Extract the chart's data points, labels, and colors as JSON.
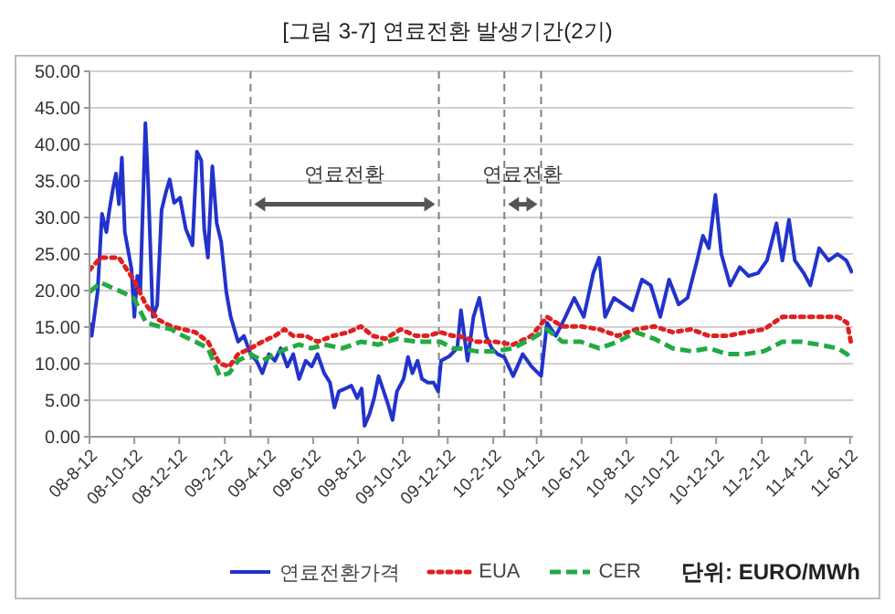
{
  "chart_data": {
    "type": "line",
    "title": "[그림 3-7] 연료전환 발생기간(2기)",
    "annotations": [
      "단위: EURO/MWh"
    ],
    "xlim": [
      "2008-08-12",
      "2011-06-16"
    ],
    "xticks": [
      {
        "value": "2008-08-12",
        "label": "08-8-12"
      },
      {
        "value": "2008-10-12",
        "label": "08-10-12"
      },
      {
        "value": "2008-12-12",
        "label": "08-12-12"
      },
      {
        "value": "2009-02-12",
        "label": "09-2-12"
      },
      {
        "value": "2009-04-12",
        "label": "09-4-12"
      },
      {
        "value": "2009-06-12",
        "label": "09-6-12"
      },
      {
        "value": "2009-08-12",
        "label": "09-8-12"
      },
      {
        "value": "2009-10-12",
        "label": "09-10-12"
      },
      {
        "value": "2009-12-12",
        "label": "09-12-12"
      },
      {
        "value": "2010-02-12",
        "label": "10-2-12"
      },
      {
        "value": "2010-04-12",
        "label": "10-4-12"
      },
      {
        "value": "2010-06-12",
        "label": "10-6-12"
      },
      {
        "value": "2010-08-12",
        "label": "10-8-12"
      },
      {
        "value": "2010-10-12",
        "label": "10-10-12"
      },
      {
        "value": "2010-12-12",
        "label": "10-12-12"
      },
      {
        "value": "2011-02-12",
        "label": "11-2-12"
      },
      {
        "value": "2011-04-12",
        "label": "11-4-12"
      },
      {
        "value": "2011-06-12",
        "label": "11-6-12"
      }
    ],
    "ylim": [
      0,
      50
    ],
    "yticks": [
      {
        "value": 0,
        "label": "0.00"
      },
      {
        "value": 5,
        "label": "5.00"
      },
      {
        "value": 10,
        "label": "10.00"
      },
      {
        "value": 15,
        "label": "15.00"
      },
      {
        "value": 20,
        "label": "20.00"
      },
      {
        "value": 25,
        "label": "25.00"
      },
      {
        "value": 30,
        "label": "30.00"
      },
      {
        "value": 35,
        "label": "35.00"
      },
      {
        "value": 40,
        "label": "40.00"
      },
      {
        "value": 45,
        "label": "45.00"
      },
      {
        "value": 50,
        "label": "50.00"
      }
    ],
    "grid": "y",
    "legend": "bottom",
    "marker": "none",
    "ref_lines": [
      {
        "axis": "x",
        "value": "2009-03-19",
        "color": "#808080",
        "line_style": "dashed",
        "label": "연료전환"
      },
      {
        "axis": "x",
        "value": "2009-11-30",
        "color": "#808080",
        "line_style": "dashed"
      },
      {
        "axis": "x",
        "value": "2010-02-27",
        "color": "#808080",
        "line_style": "dashed",
        "label": "연료전환"
      },
      {
        "axis": "x",
        "value": "2010-04-18",
        "color": "#808080",
        "line_style": "dashed"
      }
    ],
    "series": [
      {
        "name": "연료전환가격",
        "color": "#2233cc",
        "line_style": "solid",
        "x": [
          "2008-08-12",
          "2008-08-15",
          "2008-08-23",
          "2008-08-29",
          "2008-09-04",
          "2008-09-08",
          "2008-09-13",
          "2008-09-17",
          "2008-09-21",
          "2008-09-25",
          "2008-09-29",
          "2008-10-03",
          "2008-10-08",
          "2008-10-12",
          "2008-10-16",
          "2008-10-20",
          "2008-10-27",
          "2008-10-31",
          "2008-11-06",
          "2008-11-12",
          "2008-11-18",
          "2008-11-24",
          "2008-11-29",
          "2008-12-05",
          "2008-12-13",
          "2008-12-21",
          "2008-12-30",
          "2009-01-05",
          "2009-01-11",
          "2009-01-15",
          "2009-01-20",
          "2009-01-26",
          "2009-02-01",
          "2009-02-07",
          "2009-02-14",
          "2009-02-20",
          "2009-03-02",
          "2009-03-10",
          "2009-03-19",
          "2009-03-27",
          "2009-04-04",
          "2009-04-13",
          "2009-04-21",
          "2009-04-29",
          "2009-05-08",
          "2009-05-16",
          "2009-05-24",
          "2009-06-02",
          "2009-06-10",
          "2009-06-18",
          "2009-06-27",
          "2009-07-05",
          "2009-07-11",
          "2009-07-17",
          "2009-07-26",
          "2009-08-03",
          "2009-08-11",
          "2009-08-17",
          "2009-08-21",
          "2009-08-28",
          "2009-09-03",
          "2009-09-09",
          "2009-09-16",
          "2009-09-22",
          "2009-09-28",
          "2009-10-04",
          "2009-10-13",
          "2009-10-19",
          "2009-10-25",
          "2009-11-01",
          "2009-11-07",
          "2009-11-15",
          "2009-11-23",
          "2009-11-29",
          "2009-12-03",
          "2009-12-14",
          "2009-12-25",
          "2009-12-30",
          "2010-01-08",
          "2010-01-16",
          "2010-01-24",
          "2010-02-02",
          "2010-02-10",
          "2010-02-18",
          "2010-02-27",
          "2010-03-11",
          "2010-03-24",
          "2010-04-05",
          "2010-04-18",
          "2010-04-26",
          "2010-05-08",
          "2010-05-21",
          "2010-06-02",
          "2010-06-15",
          "2010-06-28",
          "2010-07-06",
          "2010-07-14",
          "2010-07-26",
          "2010-08-08",
          "2010-08-20",
          "2010-09-02",
          "2010-09-14",
          "2010-09-27",
          "2010-10-09",
          "2010-10-22",
          "2010-11-03",
          "2010-11-16",
          "2010-11-24",
          "2010-12-02",
          "2010-12-11",
          "2010-12-19",
          "2010-12-31",
          "2011-01-13",
          "2011-01-25",
          "2011-02-07",
          "2011-02-19",
          "2011-03-04",
          "2011-03-12",
          "2011-03-21",
          "2011-03-29",
          "2011-04-10",
          "2011-04-19",
          "2011-05-01",
          "2011-05-14",
          "2011-05-26",
          "2011-06-07",
          "2011-06-15"
        ],
        "values": [
          15.6,
          13.8,
          19.8,
          30.5,
          28,
          31,
          34,
          36,
          31.8,
          38.2,
          28,
          25.8,
          23,
          16.4,
          22,
          19.8,
          42.9,
          34,
          16.4,
          18,
          31,
          33.5,
          35.2,
          32,
          32.7,
          28.4,
          26.2,
          39,
          37.8,
          28.4,
          24.5,
          37,
          29.2,
          26.7,
          19.8,
          16.4,
          13,
          13.8,
          11.3,
          10.4,
          8.7,
          11.3,
          10.4,
          12.1,
          9.6,
          11.3,
          7.9,
          10.4,
          9.6,
          11.3,
          8.7,
          7.4,
          4,
          6.2,
          6.6,
          7,
          5.3,
          6.6,
          1.5,
          3.2,
          5.3,
          8.3,
          6.2,
          4.4,
          2.3,
          6.2,
          7.9,
          10.9,
          8.7,
          10.4,
          7.9,
          7.4,
          7.4,
          6.2,
          10.4,
          11,
          12.1,
          17.3,
          10.4,
          16.4,
          19,
          13.8,
          12.1,
          11.3,
          10.9,
          8.3,
          11.3,
          9.6,
          8.3,
          15.6,
          13.8,
          16.4,
          19,
          16.4,
          22.4,
          24.5,
          16.4,
          19,
          18.1,
          17.3,
          21.5,
          20.7,
          16.4,
          21.5,
          18.1,
          19,
          24.1,
          27.5,
          25.8,
          33.1,
          25,
          20.7,
          23.2,
          22,
          22.4,
          24.1,
          29.2,
          24.1,
          29.7,
          24.1,
          22.4,
          20.7,
          25.8,
          24.1,
          25,
          24.1,
          22.4
        ]
      },
      {
        "name": "EUA",
        "color": "#e02020",
        "line_style": "dotted",
        "x": [
          "2008-08-12",
          "2008-08-27",
          "2008-09-21",
          "2008-10-11",
          "2008-10-28",
          "2008-11-14",
          "2008-12-01",
          "2008-12-17",
          "2009-01-03",
          "2009-01-20",
          "2009-02-05",
          "2009-02-18",
          "2009-03-02",
          "2009-03-19",
          "2009-04-04",
          "2009-04-21",
          "2009-05-04",
          "2009-05-16",
          "2009-06-02",
          "2009-06-18",
          "2009-07-09",
          "2009-07-30",
          "2009-08-16",
          "2009-09-01",
          "2009-09-18",
          "2009-10-09",
          "2009-10-30",
          "2009-11-15",
          "2009-12-02",
          "2009-12-19",
          "2009-12-27",
          "2010-01-20",
          "2010-02-14",
          "2010-03-11",
          "2010-04-05",
          "2010-04-26",
          "2010-05-17",
          "2010-06-11",
          "2010-07-06",
          "2010-07-31",
          "2010-08-25",
          "2010-09-19",
          "2010-10-14",
          "2010-11-08",
          "2010-12-02",
          "2010-12-27",
          "2011-01-21",
          "2011-02-15",
          "2011-03-12",
          "2011-04-06",
          "2011-05-01",
          "2011-05-26",
          "2011-06-08",
          "2011-06-13"
        ],
        "values": [
          22.8,
          24.5,
          24.5,
          21.5,
          18,
          16,
          15.1,
          14.7,
          14.3,
          13,
          10,
          9.6,
          11.3,
          12.1,
          13,
          13.8,
          14.7,
          13.8,
          13.8,
          13,
          13.8,
          14.3,
          15.1,
          13.8,
          13.4,
          14.7,
          13.8,
          13.8,
          14.3,
          13.8,
          13.8,
          13,
          13,
          12.6,
          13.8,
          16.4,
          15.1,
          15.1,
          14.7,
          13.8,
          14.7,
          15.1,
          14.3,
          14.7,
          13.8,
          13.8,
          14.3,
          14.7,
          16.4,
          16.4,
          16.4,
          16.4,
          15.6,
          13
        ]
      },
      {
        "name": "CER",
        "color": "#22aa44",
        "line_style": "dashed",
        "x": [
          "2008-08-12",
          "2008-08-27",
          "2008-09-25",
          "2008-10-11",
          "2008-10-28",
          "2008-11-14",
          "2008-12-01",
          "2008-12-17",
          "2009-01-03",
          "2009-01-20",
          "2009-02-05",
          "2009-02-18",
          "2009-03-02",
          "2009-03-19",
          "2009-04-04",
          "2009-04-21",
          "2009-05-08",
          "2009-05-24",
          "2009-06-10",
          "2009-06-27",
          "2009-07-22",
          "2009-08-16",
          "2009-09-09",
          "2009-10-04",
          "2009-10-30",
          "2009-11-15",
          "2009-12-02",
          "2009-12-19",
          "2009-12-27",
          "2010-01-20",
          "2010-02-14",
          "2010-03-11",
          "2010-04-05",
          "2010-04-26",
          "2010-05-17",
          "2010-06-11",
          "2010-07-06",
          "2010-07-31",
          "2010-08-25",
          "2010-09-19",
          "2010-10-14",
          "2010-11-08",
          "2010-12-02",
          "2010-12-27",
          "2011-01-21",
          "2011-02-15",
          "2011-03-12",
          "2011-04-06",
          "2011-05-01",
          "2011-05-26",
          "2011-06-08",
          "2011-06-13"
        ],
        "values": [
          19.8,
          21.1,
          19.8,
          19,
          15.6,
          15.1,
          14.7,
          13.8,
          13,
          12.1,
          8.3,
          8.7,
          10.4,
          11.3,
          10.4,
          11.3,
          12.1,
          12.6,
          12.1,
          12.6,
          12.1,
          13,
          12.6,
          13.4,
          13,
          13,
          13,
          12.1,
          12.1,
          11.7,
          11.7,
          12.1,
          13.4,
          14.7,
          13,
          13,
          12.1,
          13,
          14.3,
          13.4,
          12.1,
          11.7,
          12.1,
          11.3,
          11.3,
          11.7,
          13,
          13,
          12.6,
          12.1,
          11.3,
          10.4
        ]
      }
    ]
  }
}
